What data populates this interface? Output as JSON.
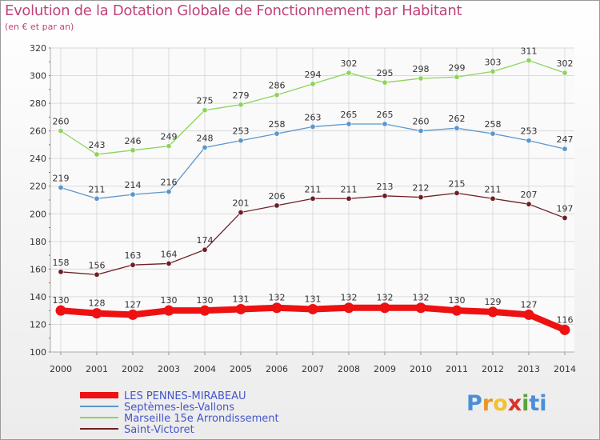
{
  "title": "Evolution de la Dotation Globale de Fonctionnement par Habitant",
  "subtitle": "(en € et par an)",
  "brand": {
    "letters": [
      "P",
      "r",
      "o",
      "x",
      "i",
      "ti"
    ]
  },
  "colors": {
    "title": "#c0427a",
    "legend_text": "#4455cc",
    "grid": "#d9d9d9",
    "axis_text": "#333333"
  },
  "chart_data": {
    "type": "line",
    "title": "Evolution de la Dotation Globale de Fonctionnement par Habitant",
    "subtitle": "(en € et par an)",
    "xlabel": "",
    "ylabel": "",
    "ylim": [
      100,
      320
    ],
    "yticks": [
      100,
      120,
      140,
      160,
      180,
      200,
      220,
      240,
      260,
      280,
      300,
      320
    ],
    "grid": true,
    "x": [
      "2000",
      "2001",
      "2002",
      "2003",
      "2004",
      "2005",
      "2006",
      "2007",
      "2008",
      "2009",
      "2010",
      "2011",
      "2012",
      "2013",
      "2014"
    ],
    "series": [
      {
        "name": "LES PENNES-MIRABEAU",
        "color": "#ee1111",
        "emphasis": true,
        "values": [
          130,
          128,
          127,
          130,
          130,
          131,
          132,
          131,
          132,
          132,
          132,
          130,
          129,
          127,
          116
        ]
      },
      {
        "name": "Septèmes-les-Vallons",
        "color": "#5b96cc",
        "emphasis": false,
        "values": [
          219,
          211,
          214,
          216,
          248,
          253,
          258,
          263,
          265,
          265,
          260,
          262,
          258,
          253,
          247
        ]
      },
      {
        "name": "Marseille 15e  Arrondissement",
        "color": "#8ed35c",
        "emphasis": false,
        "values": [
          260,
          243,
          246,
          249,
          275,
          279,
          286,
          294,
          302,
          295,
          298,
          299,
          303,
          311,
          302
        ]
      },
      {
        "name": "Saint-Victoret",
        "color": "#6e1f24",
        "emphasis": false,
        "values": [
          158,
          156,
          163,
          164,
          174,
          201,
          206,
          211,
          211,
          213,
          212,
          215,
          211,
          207,
          197
        ]
      }
    ],
    "legend_position": "bottom-left"
  }
}
